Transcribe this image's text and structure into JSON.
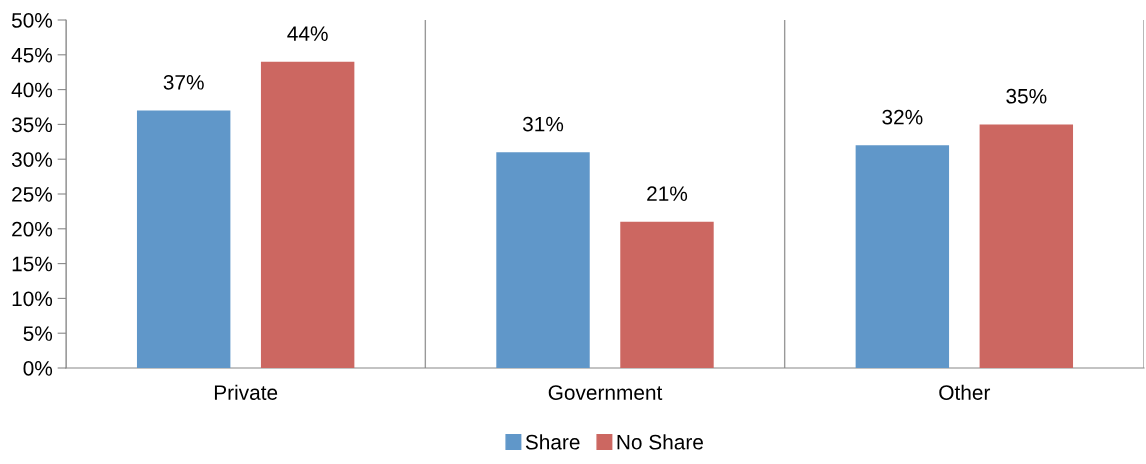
{
  "chart_data": {
    "type": "bar",
    "categories": [
      "Private",
      "Government",
      "Other"
    ],
    "series": [
      {
        "name": "Share",
        "color": "#6097c9",
        "values": [
          37,
          31,
          32
        ],
        "value_labels": [
          "37%",
          "31%",
          "32%"
        ]
      },
      {
        "name": "No Share",
        "color": "#cc6761",
        "values": [
          44,
          21,
          35
        ],
        "value_labels": [
          "44%",
          "21%",
          "35%"
        ]
      }
    ],
    "ylim": [
      0,
      50
    ],
    "yticks": [
      {
        "value": 0,
        "label": "0%"
      },
      {
        "value": 5,
        "label": "5%"
      },
      {
        "value": 10,
        "label": "10%"
      },
      {
        "value": 15,
        "label": "15%"
      },
      {
        "value": 20,
        "label": "20%"
      },
      {
        "value": 25,
        "label": "25%"
      },
      {
        "value": 30,
        "label": "30%"
      },
      {
        "value": 35,
        "label": "35%"
      },
      {
        "value": 40,
        "label": "40%"
      },
      {
        "value": 45,
        "label": "45%"
      },
      {
        "value": 50,
        "label": "50%"
      }
    ],
    "grid": "x",
    "legend": "bottom"
  }
}
